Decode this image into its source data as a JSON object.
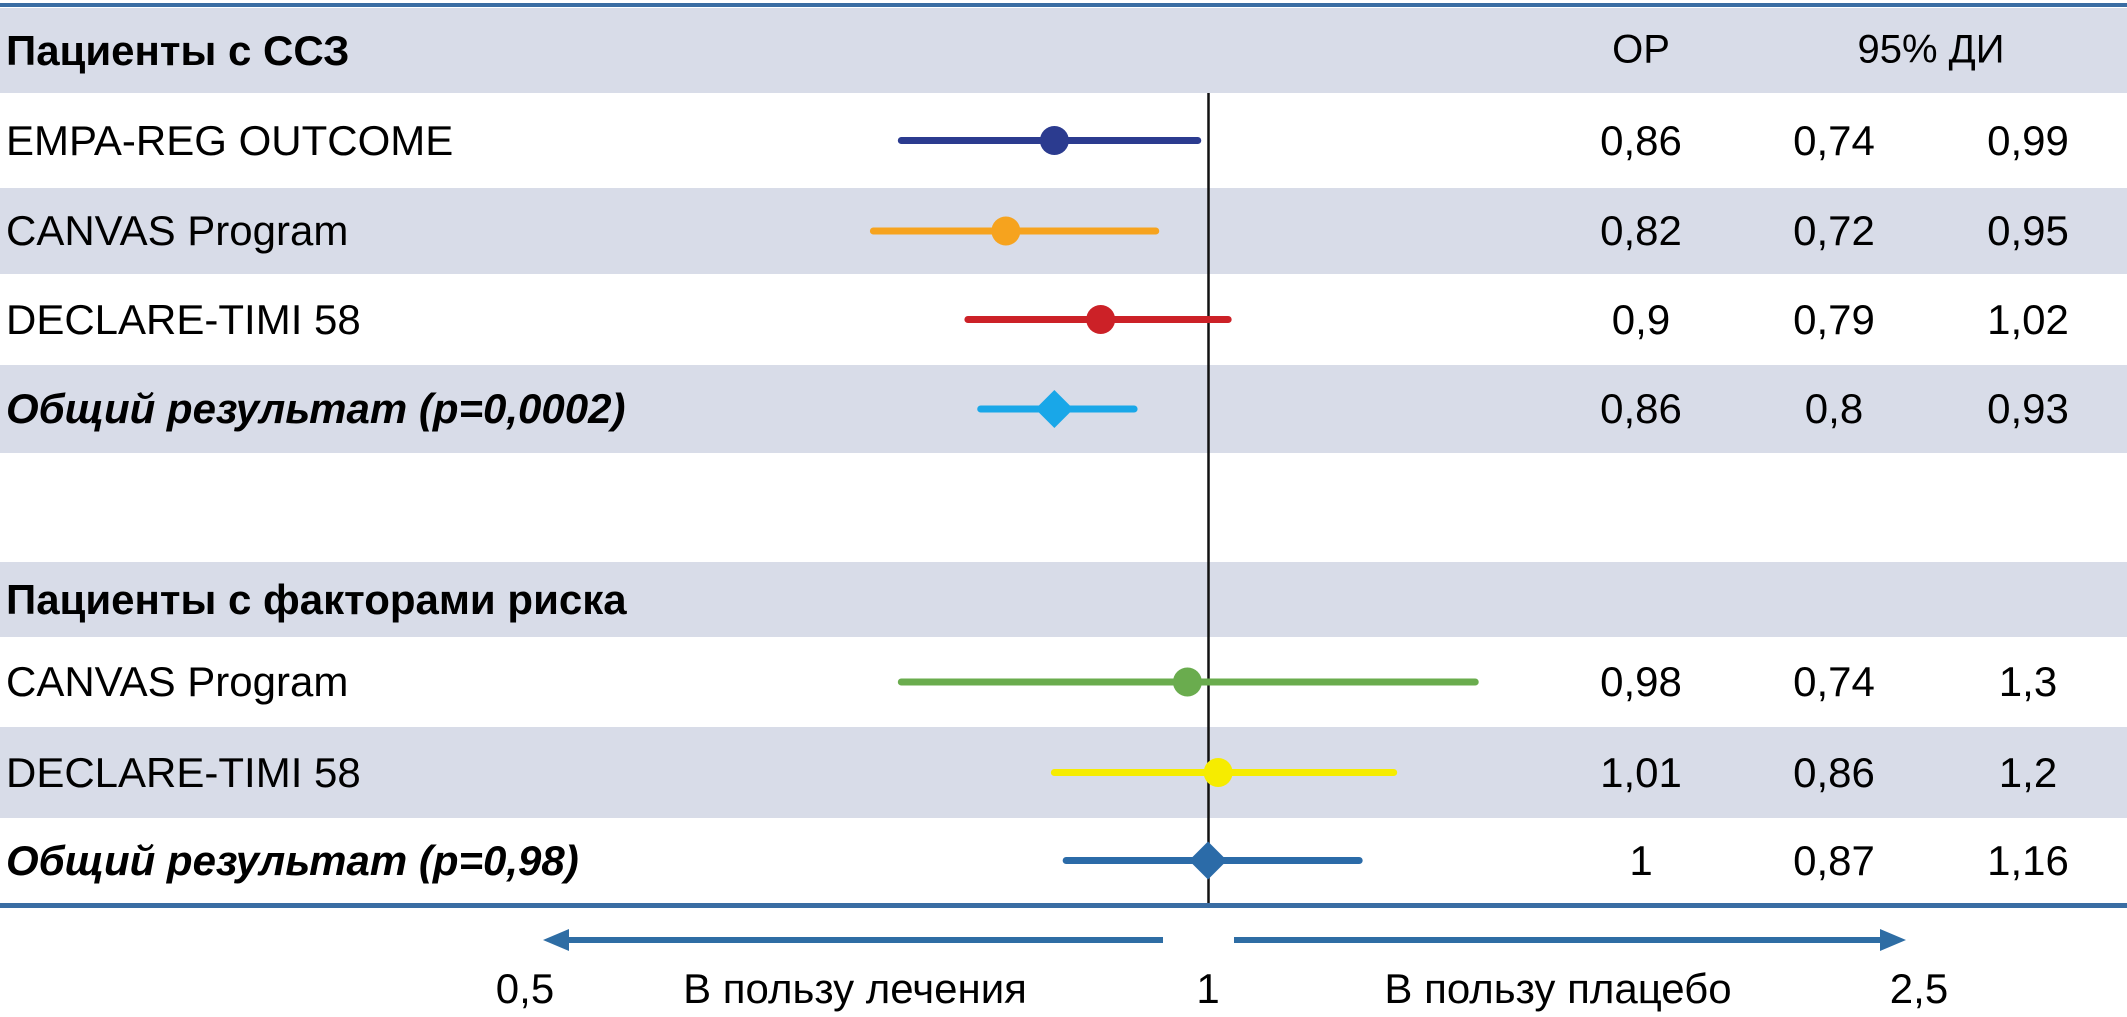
{
  "table": {
    "col_or_header": "ОР",
    "col_ci_header": "95% ДИ"
  },
  "chart_data": {
    "type": "forest",
    "scale": "log",
    "reference_value": 1,
    "axis_range": [
      0.5,
      2.5
    ],
    "rows": [
      {
        "kind": "header",
        "label": "Пациенты с ССЗ"
      },
      {
        "kind": "study",
        "label": "EMPA-REG OUTCOME",
        "point": 0.86,
        "lo": 0.74,
        "hi": 0.99,
        "or_text": "0,86",
        "lo_text": "0,74",
        "hi_text": "0,99",
        "marker": "circle",
        "color": "#2b3b8f"
      },
      {
        "kind": "study",
        "label": "CANVAS Program",
        "point": 0.82,
        "lo": 0.72,
        "hi": 0.95,
        "or_text": "0,82",
        "lo_text": "0,72",
        "hi_text": "0,95",
        "marker": "circle",
        "color": "#f6a31e"
      },
      {
        "kind": "study",
        "label": "DECLARE-TIMI 58",
        "point": 0.9,
        "lo": 0.79,
        "hi": 1.02,
        "or_text": "0,9",
        "lo_text": "0,79",
        "hi_text": "1,02",
        "marker": "circle",
        "color": "#cc2127"
      },
      {
        "kind": "summary",
        "label": "Общий результат (p=0,0002)",
        "point": 0.86,
        "lo": 0.8,
        "hi": 0.93,
        "or_text": "0,86",
        "lo_text": "0,8",
        "hi_text": "0,93",
        "marker": "diamond",
        "color": "#19a7e8"
      },
      {
        "kind": "spacer"
      },
      {
        "kind": "header",
        "label": "Пациенты с факторами риска"
      },
      {
        "kind": "study",
        "label": "CANVAS Program",
        "point": 0.98,
        "lo": 0.74,
        "hi": 1.3,
        "or_text": "0,98",
        "lo_text": "0,74",
        "hi_text": "1,3",
        "marker": "circle",
        "color": "#6aac4e"
      },
      {
        "kind": "study",
        "label": "DECLARE-TIMI 58",
        "point": 1.01,
        "lo": 0.86,
        "hi": 1.2,
        "or_text": "1,01",
        "lo_text": "0,86",
        "hi_text": "1,2",
        "marker": "circle",
        "color": "#f6ec00"
      },
      {
        "kind": "summary",
        "label": "Общий результат (p=0,98)",
        "point": 1,
        "lo": 0.87,
        "hi": 1.16,
        "or_text": "1",
        "lo_text": "0,87",
        "hi_text": "1,16",
        "marker": "diamond",
        "color": "#2b6ba8"
      }
    ],
    "axis": {
      "tick_low": "0,5",
      "tick_mid": "1",
      "tick_high": "2,5",
      "favors_left": "В пользу лечения",
      "favors_right": "В пользу плацебо"
    },
    "colors": {
      "stripe": "#d8dce8",
      "accent_blue": "#3a6da3",
      "reference_line": "#111111"
    }
  }
}
